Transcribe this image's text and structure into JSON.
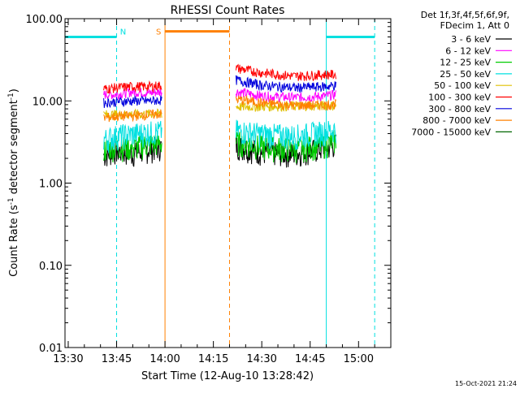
{
  "chart_data": {
    "type": "line",
    "title": "RHESSI Count Rates",
    "xlabel": "Start Time (12-Aug-10 13:28:42)",
    "ylabel": "Count Rate (s",
    "ylabel_sup": "-1",
    "ylabel_tail": " detector segment",
    "ylabel_sup2": "-1",
    "ylabel_close": ")",
    "yscale": "log",
    "ylim": [
      0.01,
      100
    ],
    "xlim": [
      "13:29",
      "15:10"
    ],
    "yticks": [
      {
        "v": 0.01,
        "label": "0.01"
      },
      {
        "v": 0.1,
        "label": "0.10"
      },
      {
        "v": 1,
        "label": "1.00"
      },
      {
        "v": 10,
        "label": "10.00"
      },
      {
        "v": 100,
        "label": "100.00"
      }
    ],
    "xticks": [
      "13:30",
      "13:45",
      "14:00",
      "14:15",
      "14:30",
      "14:45",
      "15:00"
    ],
    "legend_header": [
      "Det 1f,3f,4f,5f,6f,9f,",
      "FDecim 1, Att 0"
    ],
    "legend_placement": "right",
    "series": [
      {
        "name": "3 - 6 keV",
        "color": "#000000",
        "segments": [
          {
            "x": [
              "13:41",
              "13:45",
              "13:50",
              "13:55",
              "13:59"
            ],
            "y": [
              2.2,
              2.5,
              2.3,
              2.6,
              2.8
            ]
          },
          {
            "x": [
              "14:22",
              "14:30",
              "14:40",
              "14:50",
              "14:53"
            ],
            "y": [
              2.9,
              2.4,
              2.3,
              2.7,
              3.0
            ]
          }
        ]
      },
      {
        "name": "6 - 12 keV",
        "color": "#ff00ff",
        "segments": [
          {
            "x": [
              "13:41",
              "13:45",
              "13:50",
              "13:55",
              "13:59"
            ],
            "y": [
              12,
              12,
              13,
              12.5,
              13
            ]
          },
          {
            "x": [
              "14:22",
              "14:30",
              "14:40",
              "14:50",
              "14:53"
            ],
            "y": [
              13,
              11.5,
              11,
              11.5,
              12
            ]
          }
        ]
      },
      {
        "name": "12 - 25 keV",
        "color": "#00cc00",
        "segments": [
          {
            "x": [
              "13:41",
              "13:45",
              "13:50",
              "13:55",
              "13:59"
            ],
            "y": [
              2.6,
              2.8,
              2.7,
              3.0,
              3.1
            ]
          },
          {
            "x": [
              "14:22",
              "14:30",
              "14:40",
              "14:50",
              "14:53"
            ],
            "y": [
              3.2,
              2.8,
              2.6,
              3.0,
              3.3
            ]
          }
        ]
      },
      {
        "name": "25 - 50 keV",
        "color": "#00e0e0",
        "segments": [
          {
            "x": [
              "13:41",
              "13:45",
              "13:50",
              "13:55",
              "13:59"
            ],
            "y": [
              3.4,
              3.8,
              4.0,
              4.2,
              4.3
            ]
          },
          {
            "x": [
              "14:22",
              "14:30",
              "14:40",
              "14:50",
              "14:53"
            ],
            "y": [
              4.4,
              4.0,
              3.8,
              4.3,
              4.6
            ]
          }
        ]
      },
      {
        "name": "50 - 100 keV",
        "color": "#e0c000",
        "segments": [
          {
            "x": [
              "13:41",
              "13:59"
            ],
            "y": [
              6.8,
              7.0
            ]
          },
          {
            "x": [
              "14:22",
              "14:53"
            ],
            "y": [
              8.5,
              8.8
            ]
          }
        ]
      },
      {
        "name": "100 - 300 keV",
        "color": "#ff0000",
        "segments": [
          {
            "x": [
              "13:41",
              "13:45",
              "13:50",
              "13:55",
              "13:59"
            ],
            "y": [
              14,
              14.5,
              15,
              15,
              15.5
            ]
          },
          {
            "x": [
              "14:22",
              "14:30",
              "14:40",
              "14:50",
              "14:53"
            ],
            "y": [
              25,
              22,
              20,
              21,
              21
            ]
          }
        ]
      },
      {
        "name": "300 - 800 keV",
        "color": "#0000dd",
        "segments": [
          {
            "x": [
              "13:41",
              "13:45",
              "13:50",
              "13:55",
              "13:59"
            ],
            "y": [
              9.5,
              9.8,
              10,
              10,
              10.3
            ]
          },
          {
            "x": [
              "14:22",
              "14:30",
              "14:40",
              "14:50",
              "14:53"
            ],
            "y": [
              18,
              15.5,
              14.5,
              15,
              15.5
            ]
          }
        ]
      },
      {
        "name": "800 - 7000 keV",
        "color": "#ff8000",
        "segments": [
          {
            "x": [
              "13:41",
              "13:45",
              "13:50",
              "13:55",
              "13:59"
            ],
            "y": [
              6.2,
              6.5,
              6.6,
              6.8,
              7.0
            ]
          },
          {
            "x": [
              "14:22",
              "14:30",
              "14:40",
              "14:50",
              "14:53"
            ],
            "y": [
              10.5,
              9.5,
              8.8,
              9.0,
              9.2
            ]
          }
        ]
      },
      {
        "name": "7000 - 15000 keV",
        "color": "#006600",
        "segments": []
      }
    ],
    "annotations": [
      {
        "label": "N",
        "color": "#00e0e0"
      },
      {
        "label": "S",
        "color": "#ff8000"
      }
    ],
    "markers": [
      {
        "kind": "bar",
        "color": "#00e0e0",
        "x": [
          "13:29",
          "13:45"
        ],
        "y": 60
      },
      {
        "kind": "bar",
        "color": "#00e0e0",
        "x": [
          "14:50",
          "15:05"
        ],
        "y": 60
      },
      {
        "kind": "bar",
        "color": "#ff8000",
        "x": [
          "14:00",
          "14:20"
        ],
        "y": 70
      },
      {
        "kind": "dashed",
        "color": "#00e0e0",
        "x": "13:45"
      },
      {
        "kind": "dashed",
        "color": "#00e0e0",
        "x": "15:05"
      },
      {
        "kind": "dashed",
        "color": "#ff8000",
        "x": "14:20"
      },
      {
        "kind": "solid",
        "color": "#00e0e0",
        "x": "13:29"
      },
      {
        "kind": "solid",
        "color": "#00e0e0",
        "x": "14:50"
      },
      {
        "kind": "solid",
        "color": "#ff8000",
        "x": "14:00"
      }
    ],
    "timestamp": "15-Oct-2021 21:24"
  }
}
